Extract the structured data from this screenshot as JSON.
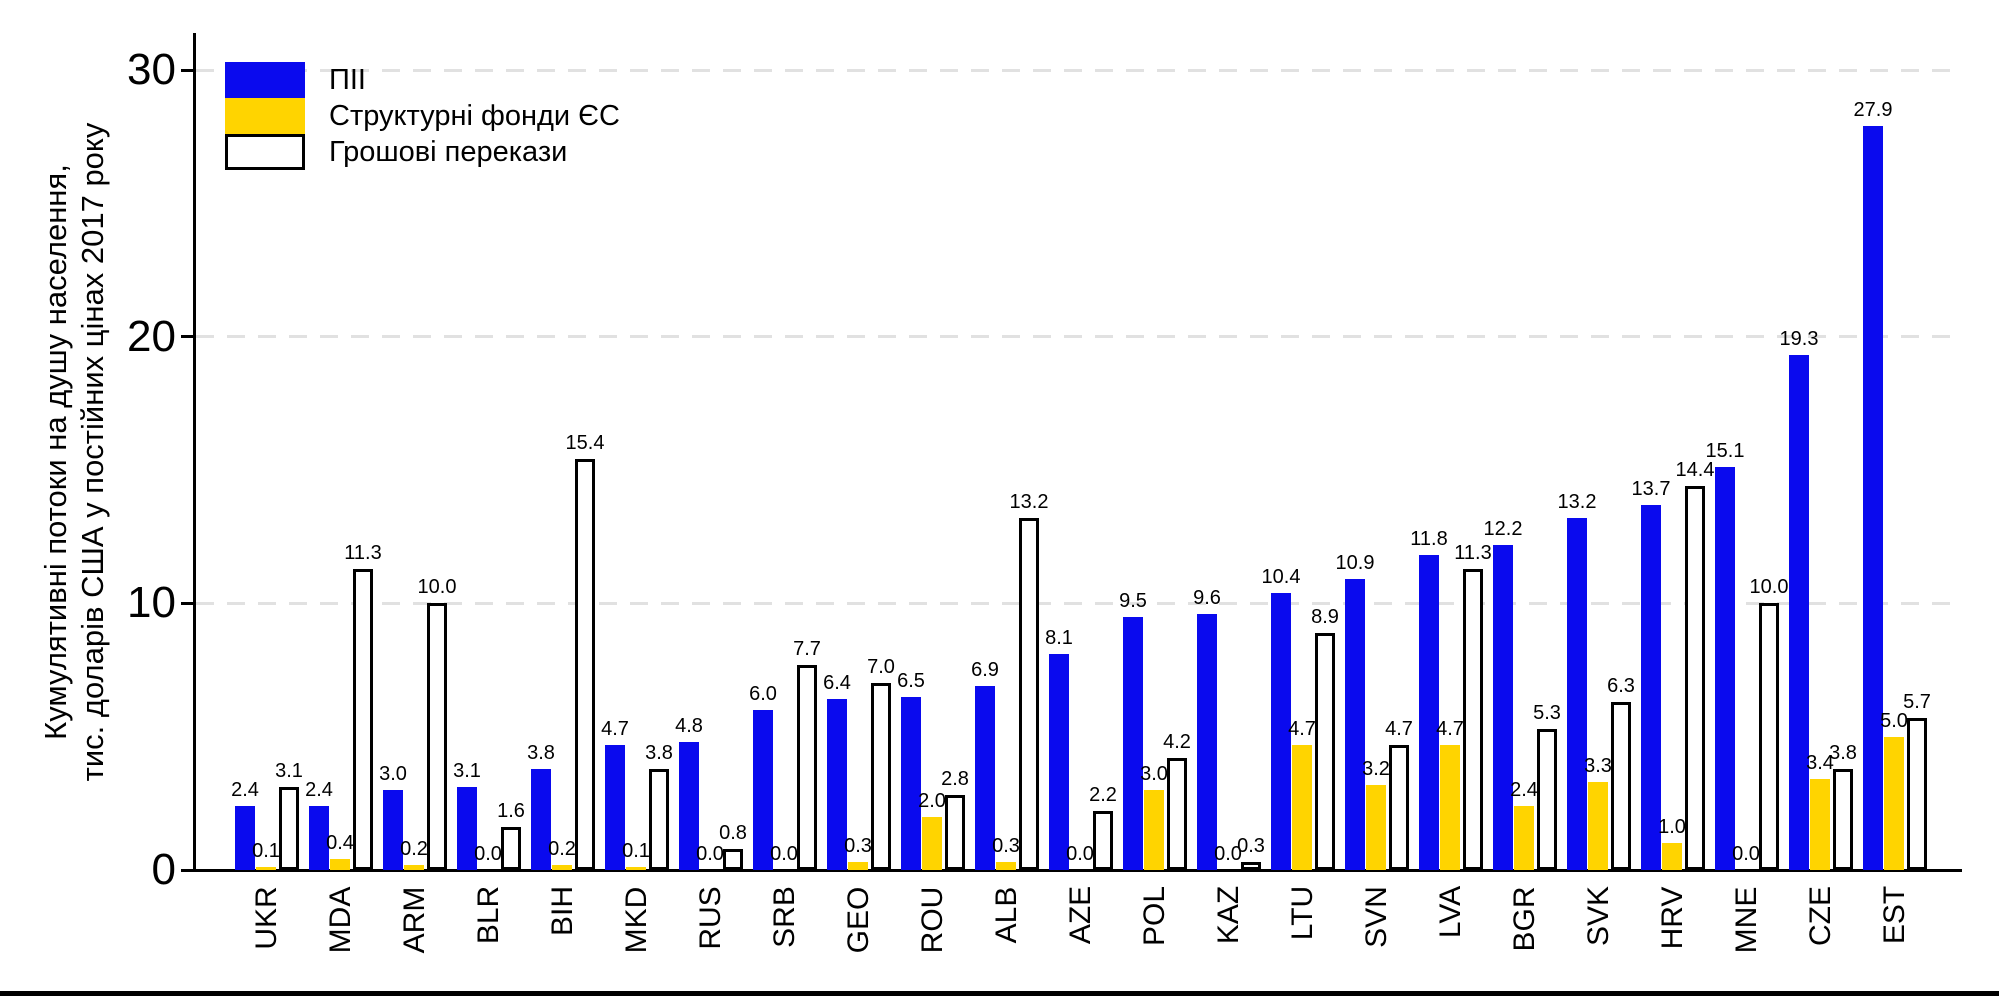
{
  "page": {
    "background": "#ffffff",
    "bottom_rule_color": "#000000"
  },
  "chart_data": {
    "type": "bar",
    "title": "",
    "xlabel": "",
    "ylabel_lines": [
      "Кумулятивні потоки на душу населення,",
      "тис. доларів США у постійних цінах 2017 року"
    ],
    "ylim": [
      0,
      30
    ],
    "yticks": [
      0,
      10,
      20,
      30
    ],
    "grid": {
      "horizontal_dashed": true,
      "color": "#e1e1e1",
      "at": [
        10,
        20,
        30
      ]
    },
    "legend_position": "top-left",
    "value_label_format": "one decimal above each bar",
    "categories": [
      "UKR",
      "MDA",
      "ARM",
      "BLR",
      "BIH",
      "MKD",
      "RUS",
      "SRB",
      "GEO",
      "ROU",
      "ALB",
      "AZE",
      "POL",
      "KAZ",
      "LTU",
      "SVN",
      "LVA",
      "BGR",
      "SVK",
      "HRV",
      "MNE",
      "CZE",
      "EST"
    ],
    "series": [
      {
        "key": "fdi",
        "name": "ПІІ",
        "color": "#0a0aee",
        "values": [
          2.4,
          2.4,
          3.0,
          3.1,
          3.8,
          4.7,
          4.8,
          6.0,
          6.4,
          6.5,
          6.9,
          8.1,
          9.5,
          9.6,
          10.4,
          10.9,
          11.8,
          12.2,
          13.2,
          13.7,
          15.1,
          19.3,
          27.9
        ]
      },
      {
        "key": "eu-structural-funds",
        "name": "Структурні фонди ЄС",
        "color": "#ffd400",
        "values": [
          0.1,
          0.4,
          0.2,
          0.0,
          0.2,
          0.1,
          0.0,
          0.0,
          0.3,
          2.0,
          0.3,
          0.0,
          3.0,
          0.0,
          4.7,
          3.2,
          4.7,
          2.4,
          3.3,
          1.0,
          0.0,
          3.4,
          5.0
        ]
      },
      {
        "key": "remittances",
        "name": "Грошові перекази",
        "color": "#ffffff",
        "border_color": "#000000",
        "values": [
          3.1,
          11.3,
          10.0,
          1.6,
          15.4,
          3.8,
          0.8,
          7.7,
          7.0,
          2.8,
          13.2,
          2.2,
          4.2,
          0.3,
          8.9,
          4.7,
          11.3,
          5.3,
          6.3,
          14.4,
          10.0,
          3.8,
          5.7
        ]
      }
    ]
  }
}
